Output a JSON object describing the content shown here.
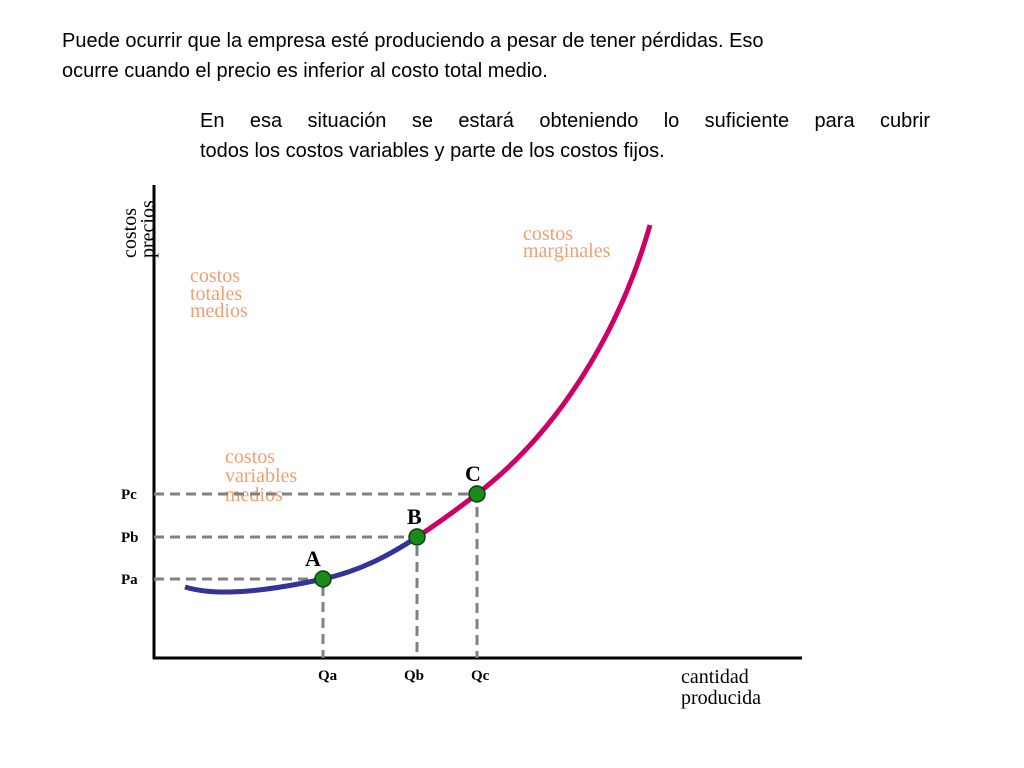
{
  "paragraph_1": [
    "Puede ocurrir que la empresa esté produciendo a pesar de tener pérdidas. Eso",
    "ocurre cuando el precio es inferior al costo total medio."
  ],
  "paragraph_2": [
    "En esa situación se estará obteniendo lo suficiente para cubrir",
    "todos los costos variables y parte de los costos fijos."
  ],
  "diagram": {
    "y_axis_label": [
      "costos",
      "precios"
    ],
    "x_axis_label": [
      "cantidad",
      "producida"
    ],
    "curve_labels": {
      "total_average_cost": [
        "costos",
        "totales",
        "medios"
      ],
      "variable_average_cost": [
        "costos",
        "variables",
        "medios"
      ],
      "marginal_cost": [
        "costos",
        "marginales"
      ]
    },
    "points": [
      {
        "label": "A",
        "price": "Pa",
        "quantity": "Qa"
      },
      {
        "label": "B",
        "price": "Pb",
        "quantity": "Qb"
      },
      {
        "label": "C",
        "price": "Pc",
        "quantity": "Qc"
      }
    ]
  }
}
